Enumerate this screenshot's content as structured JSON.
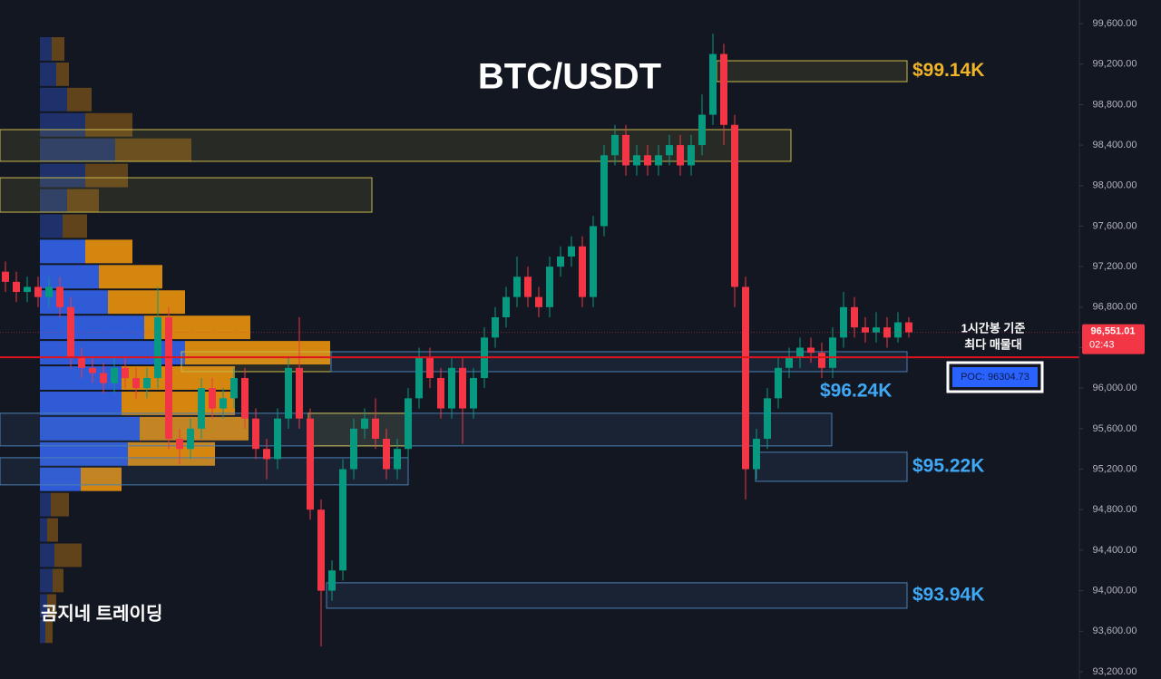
{
  "chart_data": {
    "type": "candlestick",
    "title": "BTC/USDT",
    "watermark": "곰지네 트레이딩",
    "up_color": "#089981",
    "down_color": "#f23645",
    "ylim": [
      93128,
      99833
    ],
    "yticks": [
      {
        "value": 93200,
        "label": "93,200.00"
      },
      {
        "value": 93600,
        "label": "93,600.00"
      },
      {
        "value": 94000,
        "label": "94,000.00"
      },
      {
        "value": 94400,
        "label": "94,400.00"
      },
      {
        "value": 94800,
        "label": "94,800.00"
      },
      {
        "value": 95200,
        "label": "95,200.00"
      },
      {
        "value": 95600,
        "label": "95,600.00"
      },
      {
        "value": 96000,
        "label": "96,000.00"
      },
      {
        "value": 96400,
        "label": "96,400.00"
      },
      {
        "value": 96800,
        "label": "96,800.00"
      },
      {
        "value": 97200,
        "label": "97,200.00"
      },
      {
        "value": 97600,
        "label": "97,600.00"
      },
      {
        "value": 98000,
        "label": "98,000.00"
      },
      {
        "value": 98400,
        "label": "98,400.00"
      },
      {
        "value": 98800,
        "label": "98,800.00"
      },
      {
        "value": 99200,
        "label": "99,200.00"
      },
      {
        "value": 99600,
        "label": "99,600.00"
      }
    ],
    "open": [
      97150,
      97050,
      96950,
      97000,
      96900,
      97000,
      96800,
      96300,
      96200,
      96150,
      96050,
      96200,
      96100,
      96000,
      96100,
      96700,
      95500,
      95400,
      95600,
      96000,
      95800,
      95900,
      96100,
      95700,
      95400,
      95300,
      95700,
      96200,
      95700,
      94800,
      94000,
      94200,
      95200,
      95600,
      95700,
      95500,
      95200,
      95400,
      95900,
      96300,
      96100,
      95800,
      96200,
      95800,
      96100,
      96500,
      96700,
      96900,
      97100,
      96900,
      96800,
      97200,
      97300,
      97400,
      96900,
      97600,
      98300,
      98500,
      98200,
      98300,
      98200,
      98300,
      98400,
      98200,
      98400,
      98700,
      99300,
      98600,
      97000,
      95200,
      95500,
      95900,
      96200,
      96300,
      96400,
      96350,
      96200,
      96500,
      96800,
      96600,
      96550,
      96600,
      96500,
      96650
    ],
    "high": [
      97250,
      97150,
      97100,
      97100,
      97100,
      97100,
      96900,
      96400,
      96300,
      96250,
      96300,
      96300,
      96200,
      96200,
      97000,
      96800,
      95600,
      95700,
      96100,
      96100,
      96000,
      96200,
      96200,
      95800,
      95500,
      95800,
      96300,
      96700,
      95800,
      94900,
      94300,
      95300,
      95700,
      95800,
      95900,
      95600,
      95500,
      96000,
      96400,
      96400,
      96200,
      96300,
      96300,
      96200,
      96600,
      96800,
      97000,
      97300,
      97200,
      97000,
      97300,
      97400,
      97500,
      97500,
      97700,
      98400,
      98600,
      98600,
      98400,
      98400,
      98400,
      98500,
      98500,
      98500,
      98900,
      99500,
      99400,
      98700,
      97100,
      95600,
      96000,
      96300,
      96400,
      96500,
      96500,
      96450,
      96600,
      96950,
      96900,
      96700,
      96750,
      96700,
      96750,
      96700
    ],
    "low": [
      96950,
      96850,
      96850,
      96800,
      96800,
      96700,
      96200,
      96100,
      96050,
      95950,
      95950,
      96000,
      95900,
      95900,
      96000,
      95400,
      95250,
      95300,
      95500,
      95700,
      95700,
      95800,
      95600,
      95300,
      95100,
      95200,
      95600,
      95600,
      94700,
      93450,
      93900,
      94100,
      95100,
      95500,
      95400,
      95100,
      95100,
      95300,
      95800,
      96000,
      95700,
      95700,
      95450,
      95700,
      96000,
      96400,
      96600,
      96800,
      96800,
      96700,
      96700,
      97100,
      97200,
      96800,
      96800,
      97500,
      98200,
      98100,
      98100,
      98100,
      98100,
      98200,
      98100,
      98100,
      98300,
      98600,
      98400,
      96800,
      94900,
      95100,
      95400,
      95800,
      96100,
      96200,
      96250,
      96100,
      96100,
      96400,
      96500,
      96450,
      96450,
      96400,
      96450,
      96500
    ],
    "close": [
      97050,
      96950,
      97000,
      96900,
      97000,
      96800,
      96300,
      96200,
      96150,
      96050,
      96200,
      96100,
      96000,
      96100,
      96700,
      95500,
      95400,
      95600,
      96000,
      95800,
      95900,
      96100,
      95700,
      95400,
      95300,
      95700,
      96200,
      95700,
      94800,
      94000,
      94200,
      95200,
      95600,
      95700,
      95500,
      95200,
      95400,
      95900,
      96300,
      96100,
      95800,
      96200,
      95800,
      96100,
      96500,
      96700,
      96900,
      97100,
      96900,
      96800,
      97200,
      97300,
      97400,
      96900,
      97600,
      98300,
      98500,
      98200,
      98300,
      98200,
      98300,
      98400,
      98200,
      98400,
      98700,
      99300,
      98600,
      97000,
      95200,
      95500,
      95900,
      96200,
      96300,
      96400,
      96350,
      96200,
      96500,
      96800,
      96600,
      96550,
      96600,
      96500,
      96650,
      96551.01
    ],
    "last_price": {
      "value": 96551.01,
      "label": "96,551.01"
    },
    "countdown": "02:43",
    "poc": {
      "value": 96304.73,
      "label": "POC: 96304.73"
    },
    "poc_note": [
      "1시간봉 기준",
      "최다 매물대"
    ],
    "zones": [
      {
        "range": [
          99027,
          99233
        ],
        "color": "#c9b84a",
        "label": "$99.14K"
      },
      {
        "range": [
          98240,
          98553
        ],
        "color": "#c9b84a"
      },
      {
        "range": [
          97738,
          98078
        ],
        "color": "#c9b84a"
      },
      {
        "range": [
          96163,
          96360
        ],
        "color": "#c9b84a"
      },
      {
        "range": [
          96163,
          96360
        ],
        "color": "#4a7fb5",
        "label": "$96.24K"
      },
      {
        "range": [
          95430,
          95752
        ],
        "color": "#4a7fb5"
      },
      {
        "range": [
          95430,
          95752
        ],
        "color": "#c9b84a"
      },
      {
        "range": [
          95080,
          95367
        ],
        "color": "#4a7fb5",
        "label": "$95.22K"
      },
      {
        "range": [
          95045,
          95313
        ],
        "color": "#4a7fb5"
      },
      {
        "range": [
          93827,
          94078
        ],
        "color": "#4a7fb5",
        "label": "$93.94K"
      }
    ],
    "volume_profile": {
      "levels": [
        99350,
        99100,
        98850,
        98600,
        98350,
        98100,
        97850,
        97600,
        97350,
        97100,
        96850,
        96600,
        96350,
        96100,
        95850,
        95600,
        95350,
        95100,
        94850,
        94600,
        94350,
        94100,
        93850,
        93600
      ],
      "buy": [
        13,
        18,
        30,
        50,
        83,
        50,
        30,
        25,
        50,
        65,
        75,
        115,
        160,
        90,
        90,
        110,
        97,
        45,
        12,
        8,
        16,
        14,
        8,
        6
      ],
      "sell": [
        14,
        14,
        27,
        52,
        84,
        47,
        35,
        27,
        52,
        70,
        85,
        117,
        160,
        125,
        125,
        120,
        96,
        45,
        20,
        12,
        30,
        12,
        10,
        8
      ],
      "buy_color": "#2f5bd6",
      "sell_color": "#d4860f",
      "value_area": [
        95000,
        97500
      ]
    }
  }
}
